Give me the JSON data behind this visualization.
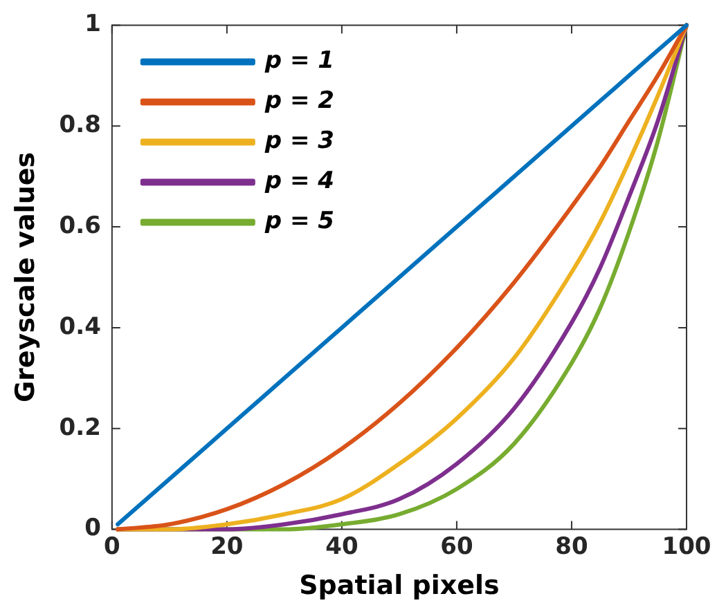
{
  "chart_data": {
    "type": "line",
    "xlabel": "Spatial pixels",
    "ylabel": "Greyscale values",
    "x": [
      1,
      10,
      20,
      30,
      40,
      50,
      60,
      70,
      80,
      85,
      90,
      95,
      100
    ],
    "series": [
      {
        "name": "p = 1",
        "color": "#0072bd",
        "values": [
          0.01,
          0.1,
          0.2,
          0.3,
          0.4,
          0.5,
          0.6,
          0.7,
          0.8,
          0.85,
          0.9,
          0.95,
          1
        ]
      },
      {
        "name": "p = 2",
        "color": "#d95319",
        "values": [
          0,
          0.01,
          0.04,
          0.09,
          0.16,
          0.25,
          0.36,
          0.49,
          0.64,
          0.72,
          0.81,
          0.9,
          1
        ]
      },
      {
        "name": "p = 3",
        "color": "#edb120",
        "values": [
          0,
          0,
          0.01,
          0.03,
          0.06,
          0.13,
          0.22,
          0.34,
          0.51,
          0.61,
          0.73,
          0.86,
          1
        ]
      },
      {
        "name": "p = 4",
        "color": "#7e2f8e",
        "values": [
          0,
          0,
          0,
          0.01,
          0.03,
          0.06,
          0.13,
          0.24,
          0.41,
          0.52,
          0.66,
          0.81,
          1
        ]
      },
      {
        "name": "p = 5",
        "color": "#77ac30",
        "values": [
          0,
          0,
          0,
          0,
          0.01,
          0.03,
          0.08,
          0.17,
          0.33,
          0.44,
          0.59,
          0.77,
          1
        ]
      }
    ],
    "xlim": [
      0,
      100
    ],
    "xticks": [
      0,
      20,
      40,
      60,
      80,
      100
    ],
    "ylim": [
      0,
      1
    ],
    "yticks": [
      0,
      0.2,
      0.4,
      0.6,
      0.8,
      1
    ],
    "grid": false,
    "legend": "top left",
    "marker": "none",
    "line_style": "solid"
  }
}
